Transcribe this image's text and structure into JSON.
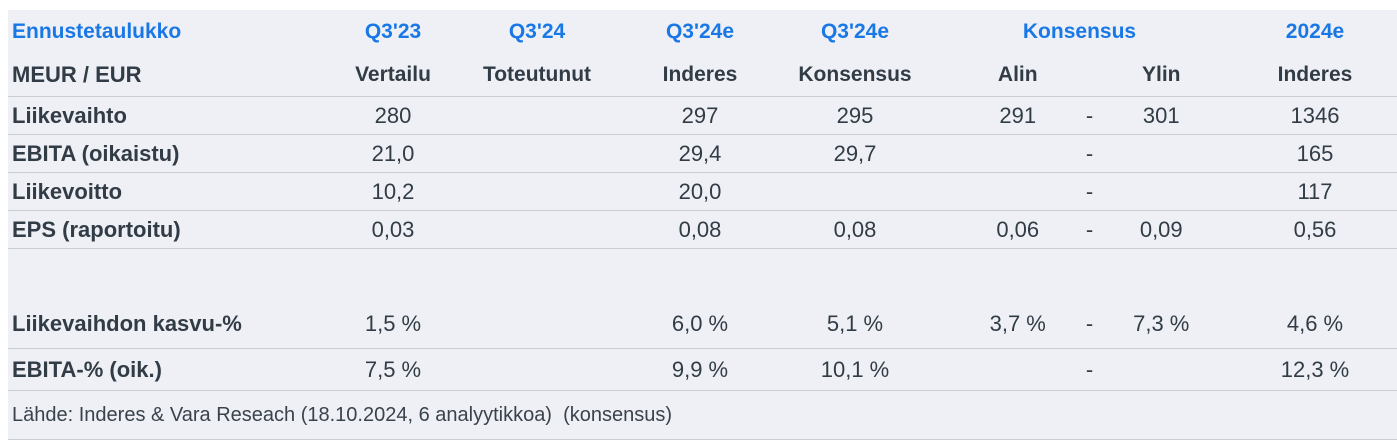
{
  "table": {
    "header_row1": {
      "title": "Ennustetaulukko",
      "q3_23": "Q3'23",
      "q3_24": "Q3'24",
      "q3_24e_inderes": "Q3'24e",
      "q3_24e_konsensus": "Q3'24e",
      "konsensus_group": "Konsensus",
      "y2024e": "2024e"
    },
    "header_row2": {
      "unit": "MEUR / EUR",
      "vertailu": "Vertailu",
      "toteutunut": "Toteutunut",
      "inderes": "Inderes",
      "konsensus": "Konsensus",
      "alin": "Alin",
      "ylin": "Ylin",
      "inderes_2024": "Inderes"
    },
    "rows": [
      {
        "cells": [
          "Liikevaihto",
          "280",
          "",
          "297",
          "295",
          "291",
          "-",
          "301",
          "1346"
        ]
      },
      {
        "cells": [
          "EBITA (oikaistu)",
          "21,0",
          "",
          "29,4",
          "29,7",
          "",
          "-",
          "",
          "165"
        ]
      },
      {
        "cells": [
          "Liikevoitto",
          "10,2",
          "",
          "20,0",
          "",
          "",
          "-",
          "",
          "117"
        ]
      },
      {
        "cells": [
          "EPS (raportoitu)",
          "0,03",
          "",
          "0,08",
          "0,08",
          "0,06",
          "-",
          "0,09",
          "0,56"
        ]
      },
      {
        "cells": [
          "Liikevaihdon kasvu-%",
          "1,5 %",
          "",
          "6,0 %",
          "5,1 %",
          "3,7 %",
          "-",
          "7,3 %",
          "4,6 %"
        ]
      },
      {
        "cells": [
          "EBITA-% (oik.)",
          "7,5 %",
          "",
          "9,9 %",
          "10,1 %",
          "",
          "-",
          "",
          "12,3 %"
        ]
      }
    ],
    "source": "Lähde: Inderes & Vara Reseach (18.10.2024, 6 analyytikkoa)  (konsensus)"
  },
  "colors": {
    "accent_blue": "#1a78e6",
    "text_dark": "#323c46",
    "table_background": "#eef0f5",
    "divider": "#c9cdd4"
  }
}
